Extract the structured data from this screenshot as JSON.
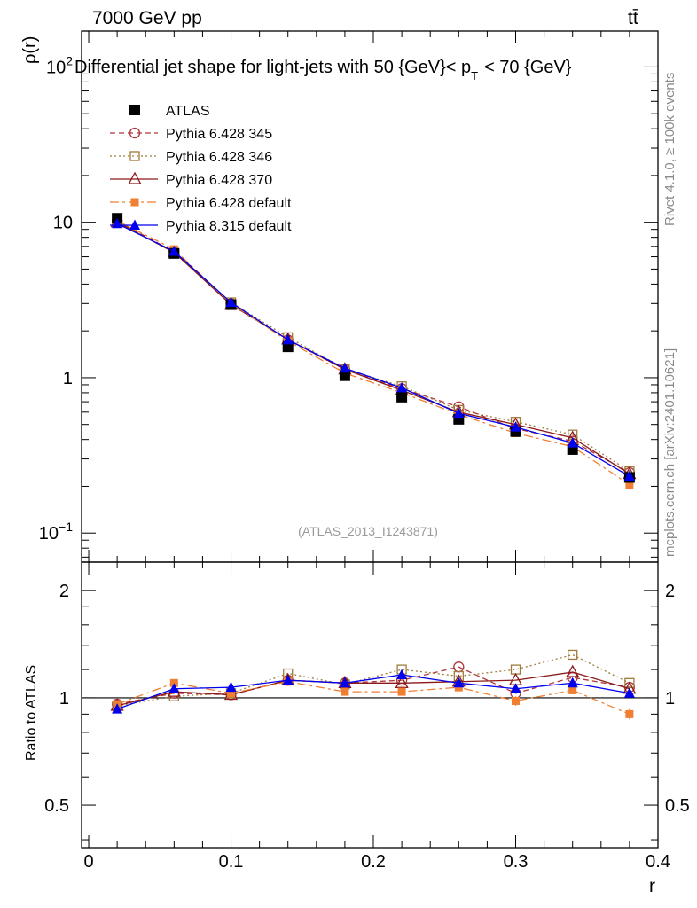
{
  "header": {
    "energy_label": "7000 GeV pp",
    "process_label": "tt̄",
    "title": "Differential jet shape for light-jets with 50 {GeV}< p",
    "title_sub": "T",
    "title_tail": "< 70 {GeV}",
    "rivet_label": "Rivet 4.1.0, ≥ 100k events",
    "mcplots_label": "mcplots.cern.ch [arXiv:2401.10621]",
    "analysis_label": "(ATLAS_2013_I1243871)"
  },
  "axes": {
    "top_ylabel": "ρ(r)",
    "bottom_ylabel": "Ratio to ATLAS",
    "xlabel": "r",
    "top_yticks": [
      {
        "value": 100,
        "base": "10",
        "exp": "2"
      },
      {
        "value": 10,
        "base": "10",
        "exp": ""
      },
      {
        "value": 1,
        "base": "1",
        "exp": ""
      },
      {
        "value": 0.1,
        "base": "10",
        "exp": "−1"
      }
    ],
    "ratio_yticks": [
      "0.5",
      "1",
      "2"
    ],
    "xticks": [
      "0",
      "0.1",
      "0.2",
      "0.3",
      "0.4"
    ]
  },
  "legend": [
    {
      "label": "ATLAS",
      "color": "#000000",
      "marker": "filled-square",
      "dash": ""
    },
    {
      "label": "Pythia 6.428 345",
      "color": "#b0343a",
      "marker": "open-circle",
      "dash": "6,4"
    },
    {
      "label": "Pythia 6.428 346",
      "color": "#a07a3a",
      "marker": "open-square",
      "dash": "2,3"
    },
    {
      "label": "Pythia 6.428 370",
      "color": "#8b1a1a",
      "marker": "open-triangle",
      "dash": ""
    },
    {
      "label": "Pythia 6.428 default",
      "color": "#f07f33",
      "marker": "filled-square-small",
      "dash": "10,4,3,4"
    },
    {
      "label": "Pythia 8.315 default",
      "color": "#0000ee",
      "marker": "filled-triangle",
      "dash": ""
    }
  ],
  "chart_data": {
    "type": "line",
    "title": "Differential jet shape for light-jets with 50 {GeV}< pT < 70 {GeV}",
    "xlabel": "r",
    "ylabel": "ρ(r)",
    "ratio_ylabel": "Ratio to ATLAS",
    "xlim": [
      -0.005,
      0.4
    ],
    "ylim": [
      0.065,
      170
    ],
    "yscale": "log",
    "ratio_ylim": [
      0.38,
      2.4
    ],
    "x": [
      0.02,
      0.06,
      0.1,
      0.14,
      0.18,
      0.22,
      0.26,
      0.3,
      0.34,
      0.38
    ],
    "series": [
      {
        "name": "ATLAS",
        "values": [
          10.6,
          6.3,
          2.95,
          1.58,
          1.03,
          0.75,
          0.54,
          0.45,
          0.345,
          0.228
        ],
        "ratio": [
          1,
          1,
          1,
          1,
          1,
          1,
          1,
          1,
          1,
          1
        ]
      },
      {
        "name": "Pythia 6.428 345",
        "values": [
          10.2,
          6.45,
          3.0,
          1.75,
          1.13,
          0.85,
          0.65,
          0.47,
          0.39,
          0.245
        ],
        "ratio": [
          0.96,
          1.03,
          1.02,
          1.12,
          1.1,
          1.12,
          1.22,
          1.03,
          1.14,
          1.07
        ]
      },
      {
        "name": "Pythia 6.428 346",
        "values": [
          10.1,
          6.35,
          3.05,
          1.82,
          1.14,
          0.88,
          0.62,
          0.52,
          0.43,
          0.25
        ],
        "ratio": [
          0.95,
          1.01,
          1.03,
          1.17,
          1.09,
          1.2,
          1.15,
          1.2,
          1.32,
          1.1
        ]
      },
      {
        "name": "Pythia 6.428 370",
        "values": [
          10.0,
          6.4,
          2.95,
          1.76,
          1.13,
          0.83,
          0.6,
          0.5,
          0.41,
          0.24
        ],
        "ratio": [
          0.95,
          1.04,
          1.02,
          1.12,
          1.1,
          1.1,
          1.11,
          1.12,
          1.18,
          1.06
        ]
      },
      {
        "name": "Pythia 6.428 default",
        "values": [
          10.2,
          6.7,
          3.0,
          1.72,
          1.07,
          0.8,
          0.58,
          0.44,
          0.36,
          0.205
        ],
        "ratio": [
          0.96,
          1.1,
          1.03,
          1.11,
          1.04,
          1.04,
          1.07,
          0.98,
          1.05,
          0.9
        ],
        "ratio_err": [
          0.01,
          0.01,
          0.01,
          0.01,
          0.02,
          0.02,
          0.02,
          0.03,
          0.02,
          0.03
        ]
      },
      {
        "name": "Pythia 8.315 default",
        "values": [
          9.8,
          6.5,
          3.05,
          1.75,
          1.15,
          0.86,
          0.59,
          0.48,
          0.38,
          0.232
        ],
        "ratio": [
          0.93,
          1.06,
          1.07,
          1.12,
          1.1,
          1.16,
          1.1,
          1.06,
          1.1,
          1.03
        ]
      }
    ]
  }
}
